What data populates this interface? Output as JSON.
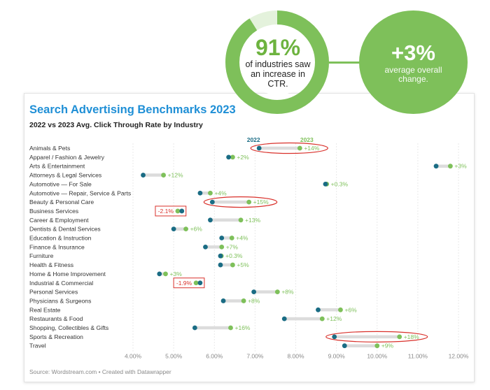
{
  "badge_left": {
    "value": "91%",
    "text": "of industries saw an increase in CTR.",
    "percent": 91
  },
  "badge_right": {
    "value": "+3%",
    "text": "average overall change."
  },
  "title": "Search Advertising Benchmarks 2023",
  "subtitle": "2022 vs 2023 Avg. Click Through Rate by Industry",
  "source": "Source: Wordstream.com • Created with Datawrapper",
  "colors": {
    "y2022": "#1a6c84",
    "y2023": "#7ec05a",
    "accent": "#6db33f",
    "highlight": "#d9312b"
  },
  "chart_data": {
    "type": "dot",
    "series": [
      {
        "name": "2022"
      },
      {
        "name": "2023"
      }
    ],
    "xlim": [
      4.0,
      12.0
    ],
    "xticks": [
      "4.00%",
      "5.00%",
      "6.00%",
      "7.00%",
      "8.00%",
      "9.00%",
      "10.00%",
      "11.00%",
      "12.00%"
    ],
    "rows": [
      {
        "label": "Animals & Pets",
        "v2022": 7.1,
        "v2023": 8.1,
        "change": "+14%",
        "circled": true
      },
      {
        "label": "Apparel / Fashion & Jewelry",
        "v2022": 6.35,
        "v2023": 6.45,
        "change": "+2%"
      },
      {
        "label": "Arts & Entertainment",
        "v2022": 11.45,
        "v2023": 11.8,
        "change": "+3%"
      },
      {
        "label": "Attorneys & Legal Services",
        "v2022": 4.25,
        "v2023": 4.75,
        "change": "+12%"
      },
      {
        "label": "Automotive — For Sale",
        "v2022": 8.73,
        "v2023": 8.76,
        "change": "+0.3%"
      },
      {
        "label": "Automotive — Repair, Service & Parts",
        "v2022": 5.65,
        "v2023": 5.9,
        "change": "+4%"
      },
      {
        "label": "Beauty & Personal Care",
        "v2022": 5.95,
        "v2023": 6.85,
        "change": "+15%",
        "circled": true
      },
      {
        "label": "Business Services",
        "v2022": 5.2,
        "v2023": 5.1,
        "change": "-2.1%",
        "boxed": true
      },
      {
        "label": "Career & Employment",
        "v2022": 5.9,
        "v2023": 6.65,
        "change": "+13%"
      },
      {
        "label": "Dentists & Dental Services",
        "v2022": 5.0,
        "v2023": 5.3,
        "change": "+6%"
      },
      {
        "label": "Education & Instruction",
        "v2022": 6.18,
        "v2023": 6.43,
        "change": "+4%"
      },
      {
        "label": "Finance & Insurance",
        "v2022": 5.78,
        "v2023": 6.18,
        "change": "+7%"
      },
      {
        "label": "Furniture",
        "v2022": 6.15,
        "v2023": 6.17,
        "change": "+0.3%"
      },
      {
        "label": "Health & Fitness",
        "v2022": 6.15,
        "v2023": 6.45,
        "change": "+5%"
      },
      {
        "label": "Home & Home Improvement",
        "v2022": 4.65,
        "v2023": 4.8,
        "change": "+3%"
      },
      {
        "label": "Industrial & Commercial",
        "v2022": 5.65,
        "v2023": 5.55,
        "change": "-1.9%",
        "boxed": true
      },
      {
        "label": "Personal Services",
        "v2022": 6.97,
        "v2023": 7.55,
        "change": "+8%"
      },
      {
        "label": "Physicians & Surgeons",
        "v2022": 6.22,
        "v2023": 6.72,
        "change": "+8%"
      },
      {
        "label": "Real Estate",
        "v2022": 8.55,
        "v2023": 9.1,
        "change": "+6%"
      },
      {
        "label": "Restaurants & Food",
        "v2022": 7.72,
        "v2023": 8.65,
        "change": "+12%"
      },
      {
        "label": "Shopping, Collectibles & Gifts",
        "v2022": 5.52,
        "v2023": 6.4,
        "change": "+16%"
      },
      {
        "label": "Sports & Recreation",
        "v2022": 8.95,
        "v2023": 10.55,
        "change": "+18%",
        "circled": true
      },
      {
        "label": "Travel",
        "v2022": 9.2,
        "v2023": 10.0,
        "change": "+9%"
      }
    ]
  }
}
